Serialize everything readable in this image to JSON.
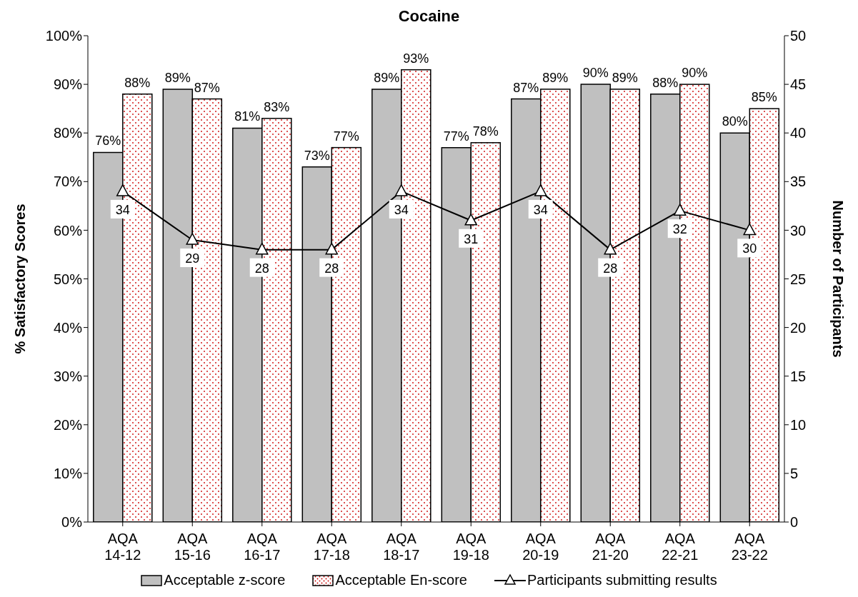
{
  "chart_data": {
    "type": "bar",
    "title": "Cocaine",
    "ylabel": "% Satisfactory Scores",
    "y2label": "Number of Participants",
    "categories": [
      "AQA 14-12",
      "AQA 15-16",
      "AQA 16-17",
      "AQA 17-18",
      "AQA 18-17",
      "AQA 19-18",
      "AQA 20-19",
      "AQA 21-20",
      "AQA 22-21",
      "AQA 23-22"
    ],
    "series": [
      {
        "name": "Acceptable z-score",
        "color": "#c0c0c0",
        "values": [
          76,
          89,
          81,
          73,
          89,
          77,
          87,
          90,
          88,
          80
        ],
        "value_labels": [
          "76%",
          "89%",
          "81%",
          "73%",
          "89%",
          "77%",
          "87%",
          "90%",
          "88%",
          "80%"
        ]
      },
      {
        "name": "Acceptable En-score",
        "color": "#cc0000",
        "values": [
          88,
          87,
          83,
          77,
          93,
          78,
          89,
          89,
          90,
          85
        ],
        "value_labels": [
          "88%",
          "87%",
          "83%",
          "77%",
          "93%",
          "78%",
          "89%",
          "89%",
          "90%",
          "85%"
        ]
      },
      {
        "name": "Participants submitting results",
        "type": "line",
        "axis": "y2",
        "color": "#000000",
        "marker": "triangle",
        "values": [
          34,
          29,
          28,
          28,
          34,
          31,
          34,
          28,
          32,
          30
        ],
        "value_labels": [
          "34",
          "29",
          "28",
          "28",
          "34",
          "31",
          "34",
          "28",
          "32",
          "30"
        ]
      }
    ],
    "ylim": [
      0,
      100
    ],
    "yticks": [
      {
        "value": 0,
        "label": "0%"
      },
      {
        "value": 10,
        "label": "10%"
      },
      {
        "value": 20,
        "label": "20%"
      },
      {
        "value": 30,
        "label": "30%"
      },
      {
        "value": 40,
        "label": "40%"
      },
      {
        "value": 50,
        "label": "50%"
      },
      {
        "value": 60,
        "label": "60%"
      },
      {
        "value": 70,
        "label": "70%"
      },
      {
        "value": 80,
        "label": "80%"
      },
      {
        "value": 90,
        "label": "90%"
      },
      {
        "value": 100,
        "label": "100%"
      }
    ],
    "y2lim": [
      0,
      50
    ],
    "y2ticks": [
      0,
      5,
      10,
      15,
      20,
      25,
      30,
      35,
      40,
      45,
      50
    ],
    "grid": false,
    "legend": "bottom"
  }
}
